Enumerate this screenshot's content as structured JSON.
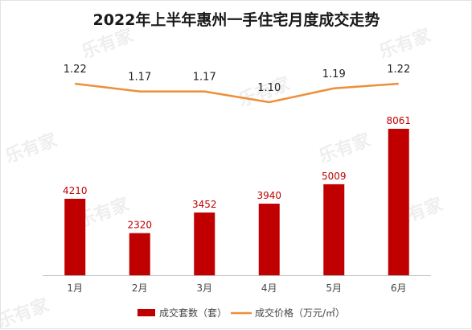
{
  "colors": {
    "bar": "#c00000",
    "line": "#ed8f3a",
    "bar_label": "#c00000",
    "axis": "#bfbfbf"
  },
  "watermark_text": "乐有家",
  "chart_data": {
    "type": "bar",
    "title": "2022年上半年惠州一手住宅月度成交走势",
    "categories": [
      "1月",
      "2月",
      "3月",
      "4月",
      "5月",
      "6月"
    ],
    "series": [
      {
        "name": "成交套数（套）",
        "type": "bar",
        "values": [
          4210,
          2320,
          3452,
          3940,
          5009,
          8061
        ]
      },
      {
        "name": "成交价格（万元/㎡）",
        "type": "line",
        "values": [
          1.22,
          1.17,
          1.17,
          1.1,
          1.19,
          1.22
        ]
      }
    ],
    "bar_ylim": [
      0,
      9000
    ],
    "line_ylim": [
      0.5,
      1.4
    ],
    "grid": false,
    "legend_position": "bottom"
  }
}
